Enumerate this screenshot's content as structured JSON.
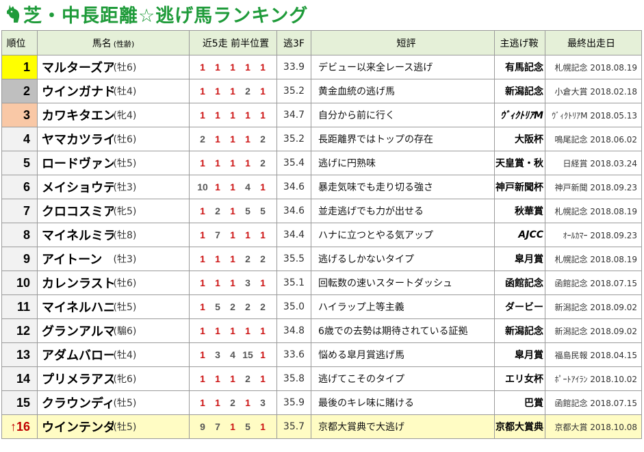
{
  "title": "芝・中長距離☆逃げ馬ランキング",
  "icon": "horse-head-icon",
  "colors": {
    "title": "#1f9b3a",
    "header_bg": "#e5f0d8",
    "rank1": "#ffff00",
    "rank2": "#bfbfbf",
    "rank3": "#f9c8a6",
    "highlight": "#fffcc4",
    "positions": "#cc1111"
  },
  "headers": {
    "rank": "順位",
    "name": "馬名",
    "name_sub": "(性齢)",
    "recent": "近5走 前半位置",
    "f3": "逃3F",
    "comment": "短評",
    "race": "主逃げ鞍",
    "last": "最終出走日"
  },
  "rows": [
    {
      "rank": "1",
      "name": "マルターズアポジー",
      "sex": "(牡6)",
      "positions": [
        "1",
        "1",
        "1",
        "1",
        "1"
      ],
      "f3": "33.9",
      "comment": "デビュー以来全レース逃げ",
      "race": "有馬記念",
      "last": "札幌記念 2018.08.19"
    },
    {
      "rank": "2",
      "name": "ウインガナドル",
      "sex": "(牡4)",
      "positions": [
        "1",
        "1",
        "1",
        "2",
        "1"
      ],
      "f3": "35.2",
      "comment": "黄金血統の逃げ馬",
      "race": "新潟記念",
      "last": "小倉大賞 2018.02.18"
    },
    {
      "rank": "3",
      "name": "カワキタエンカ",
      "sex": "(牝4)",
      "positions": [
        "1",
        "1",
        "1",
        "1",
        "1"
      ],
      "f3": "34.7",
      "comment": "自分から前に行く",
      "race": "ｳﾞｨｸﾄﾘｱM",
      "last": "ｳﾞｨｸﾄﾘｱM 2018.05.13"
    },
    {
      "rank": "4",
      "name": "ヤマカツライデン",
      "sex": "(牡6)",
      "positions": [
        "2",
        "1",
        "1",
        "1",
        "2"
      ],
      "f3": "35.2",
      "comment": "長距離界ではトップの存在",
      "race": "大阪杯",
      "last": "鳴尾記念 2018.06.02"
    },
    {
      "rank": "5",
      "name": "ロードヴァンドール",
      "sex": "(牡5)",
      "positions": [
        "1",
        "1",
        "1",
        "1",
        "2"
      ],
      "f3": "35.4",
      "comment": "逃げに円熟味",
      "race": "天皇賞・秋",
      "last": "日経賞 2018.03.24"
    },
    {
      "rank": "6",
      "name": "メイショウテッコン",
      "sex": "(牡3)",
      "positions": [
        "10",
        "1",
        "1",
        "4",
        "1"
      ],
      "f3": "34.6",
      "comment": "暴走気味でも走り切る強さ",
      "race": "神戸新聞杯",
      "last": "神戸新聞 2018.09.23"
    },
    {
      "rank": "7",
      "name": "クロコスミア",
      "sex": "(牝5)",
      "positions": [
        "1",
        "2",
        "1",
        "5",
        "5"
      ],
      "f3": "34.6",
      "comment": "並走逃げでも力が出せる",
      "race": "秋華賞",
      "last": "札幌記念 2018.08.19"
    },
    {
      "rank": "8",
      "name": "マイネルミラノ",
      "sex": "(牡8)",
      "positions": [
        "1",
        "7",
        "1",
        "1",
        "1"
      ],
      "f3": "34.4",
      "comment": "ハナに立つとやる気アップ",
      "race": "AJCC",
      "last": "ｵｰﾙｶﾏｰ 2018.09.23"
    },
    {
      "rank": "9",
      "name": "アイトーン",
      "sex": "(牡3)",
      "positions": [
        "1",
        "1",
        "1",
        "2",
        "2"
      ],
      "f3": "35.5",
      "comment": "逃げるしかないタイプ",
      "race": "皐月賞",
      "last": "札幌記念 2018.08.19"
    },
    {
      "rank": "10",
      "name": "カレンラストショー",
      "sex": "(牡6)",
      "positions": [
        "1",
        "1",
        "1",
        "3",
        "1"
      ],
      "f3": "35.1",
      "comment": "回転数の速いスタートダッシュ",
      "race": "函館記念",
      "last": "函館記念 2018.07.15"
    },
    {
      "rank": "11",
      "name": "マイネルハニー",
      "sex": "(牡5)",
      "positions": [
        "1",
        "5",
        "2",
        "2",
        "2"
      ],
      "f3": "35.0",
      "comment": "ハイラップ上等主義",
      "race": "ダービー",
      "last": "新潟記念 2018.09.02"
    },
    {
      "rank": "12",
      "name": "グランアルマダ",
      "sex": "(騸6)",
      "positions": [
        "1",
        "1",
        "1",
        "1",
        "1"
      ],
      "f3": "34.8",
      "comment": "6歳での去勢は期待されている証拠",
      "race": "新潟記念",
      "last": "新潟記念 2018.09.02"
    },
    {
      "rank": "13",
      "name": "アダムバローズ",
      "sex": "(牡4)",
      "positions": [
        "1",
        "3",
        "4",
        "15",
        "1"
      ],
      "f3": "33.6",
      "comment": "悩める皐月賞逃げ馬",
      "race": "皐月賞",
      "last": "福島民報 2018.04.15"
    },
    {
      "rank": "14",
      "name": "プリメラアスール",
      "sex": "(牝6)",
      "positions": [
        "1",
        "1",
        "1",
        "2",
        "1"
      ],
      "f3": "35.8",
      "comment": "逃げてこそのタイプ",
      "race": "エリ女杯",
      "last": "ﾎﾟｰﾄｱｲﾗﾝ 2018.10.02"
    },
    {
      "rank": "15",
      "name": "クラウンディバイダ",
      "sex": "(牡5)",
      "positions": [
        "1",
        "1",
        "2",
        "1",
        "3"
      ],
      "f3": "35.9",
      "comment": "最後のキレ味に賭ける",
      "race": "巴賞",
      "last": "函館記念 2018.07.15"
    },
    {
      "rank": "16",
      "rank_prefix": "↑",
      "name": "ウインテンダネス",
      "sex": "(牡5)",
      "positions": [
        "9",
        "7",
        "1",
        "5",
        "1"
      ],
      "f3": "35.7",
      "comment": "京都大賞典で大逃げ",
      "race": "京都大賞典",
      "last": "京都大賞 2018.10.08"
    }
  ]
}
